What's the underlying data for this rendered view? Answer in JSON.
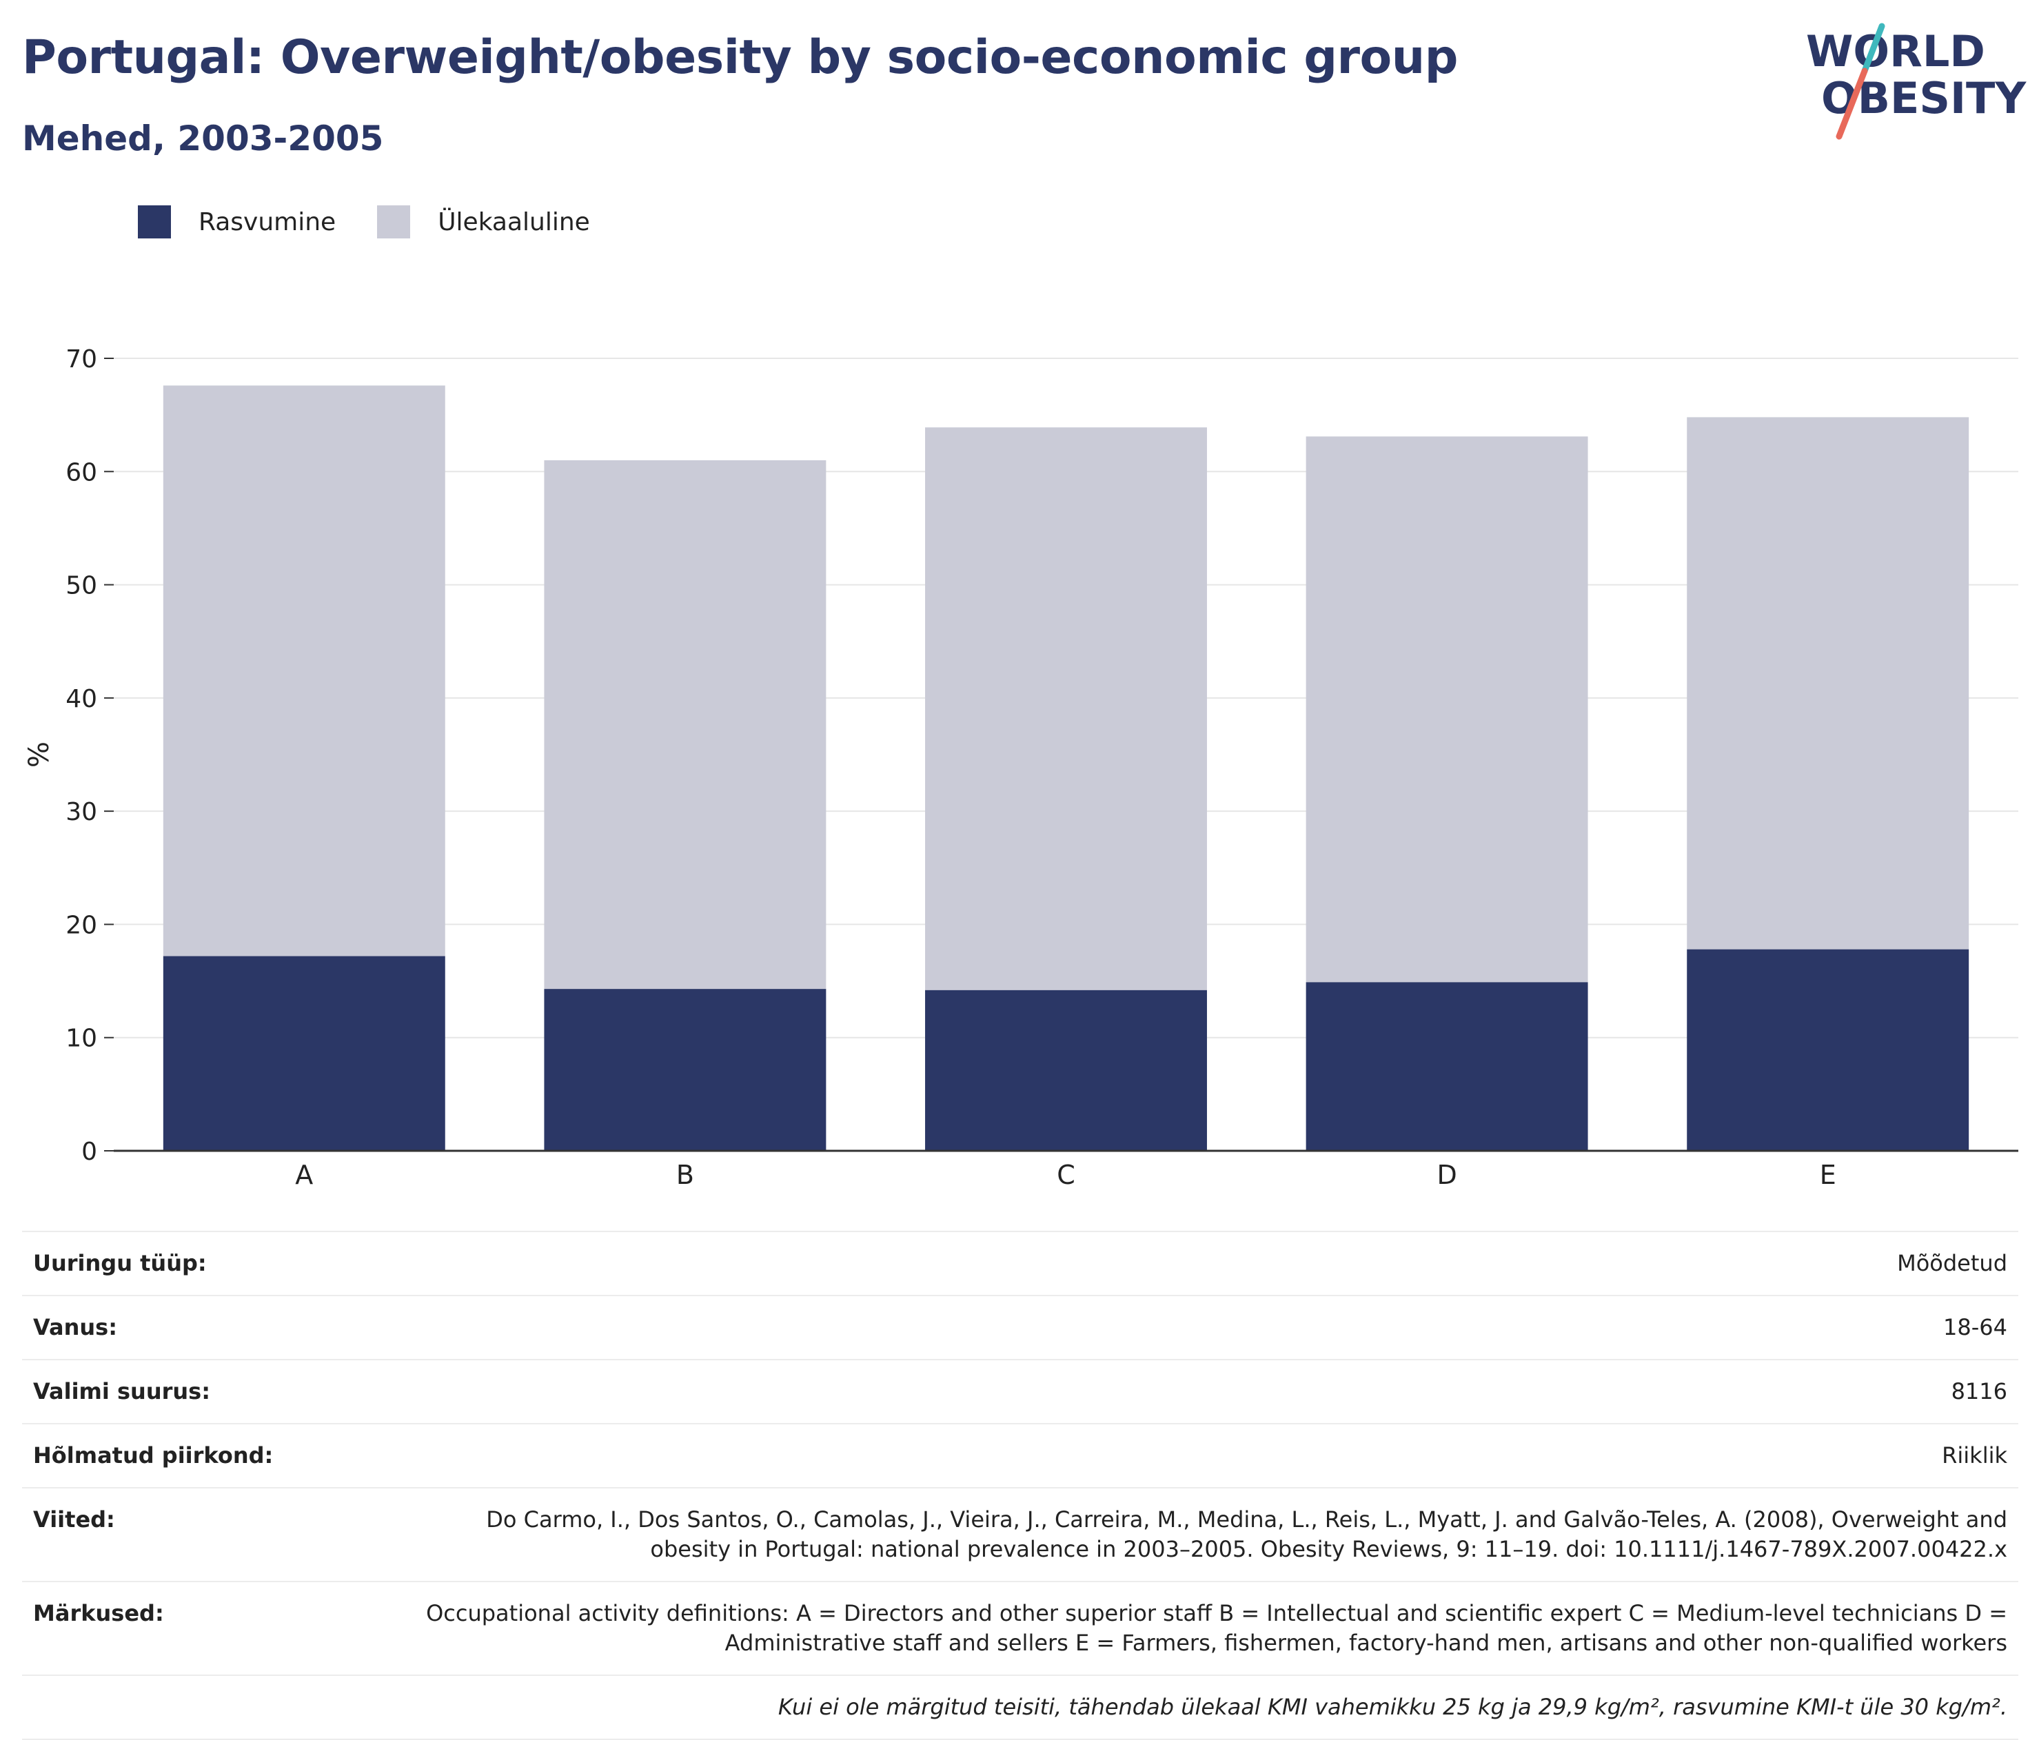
{
  "title": "Portugal: Overweight/obesity by socio-economic group",
  "subtitle": "Mehed, 2003-2005",
  "logo": {
    "line1": "WORLD",
    "line2": "OBESITY",
    "text_color": "#2b3766",
    "slash_top": "#3fb8bd",
    "slash_bottom": "#e8695a"
  },
  "legend": [
    {
      "label": "Rasvumine",
      "color": "#2b3766"
    },
    {
      "label": "Ülekaaluline",
      "color": "#cacbd7"
    }
  ],
  "chart_data": {
    "type": "bar",
    "stacked": true,
    "categories": [
      "A",
      "B",
      "C",
      "D",
      "E"
    ],
    "series": [
      {
        "name": "Rasvumine",
        "color": "#2b3766",
        "values": [
          17.2,
          14.3,
          14.2,
          14.9,
          17.8
        ]
      },
      {
        "name": "Ülekaaluline",
        "color": "#cacbd7",
        "values": [
          50.4,
          46.7,
          49.7,
          48.2,
          47.0
        ]
      }
    ],
    "ylabel": "%",
    "xlabel": "",
    "ylim": [
      0,
      70
    ],
    "yticks": [
      0,
      10,
      20,
      30,
      40,
      50,
      60,
      70
    ],
    "grid": true,
    "legend_position": "top-left"
  },
  "info": [
    {
      "key": "Uuringu tüüp:",
      "value": "Mõõdetud"
    },
    {
      "key": "Vanus:",
      "value": "18-64"
    },
    {
      "key": "Valimi suurus:",
      "value": "8116"
    },
    {
      "key": "Hõlmatud piirkond:",
      "value": "Riiklik"
    },
    {
      "key": "Viited:",
      "value": "Do Carmo, I., Dos Santos, O., Camolas, J., Vieira, J., Carreira, M., Medina, L., Reis, L., Myatt, J. and Galvão-Teles, A. (2008), Overweight and obesity in Portugal: national prevalence in 2003–2005. Obesity Reviews, 9: 11–19. doi: 10.1111/j.1467-789X.2007.00422.x"
    },
    {
      "key": "Märkused:",
      "value": "Occupational activity definitions: A = Directors and other superior staff B = Intellectual and scientific expert C = Medium-level technicians D = Administrative staff and sellers E = Farmers, fishermen, factory-hand men, artisans and other non-qualified workers"
    }
  ],
  "footnote": "Kui ei ole märgitud teisiti, tähendab ülekaal KMI vahemikku 25 kg ja 29,9 kg/m², rasvumine KMI-t üle 30 kg/m²."
}
